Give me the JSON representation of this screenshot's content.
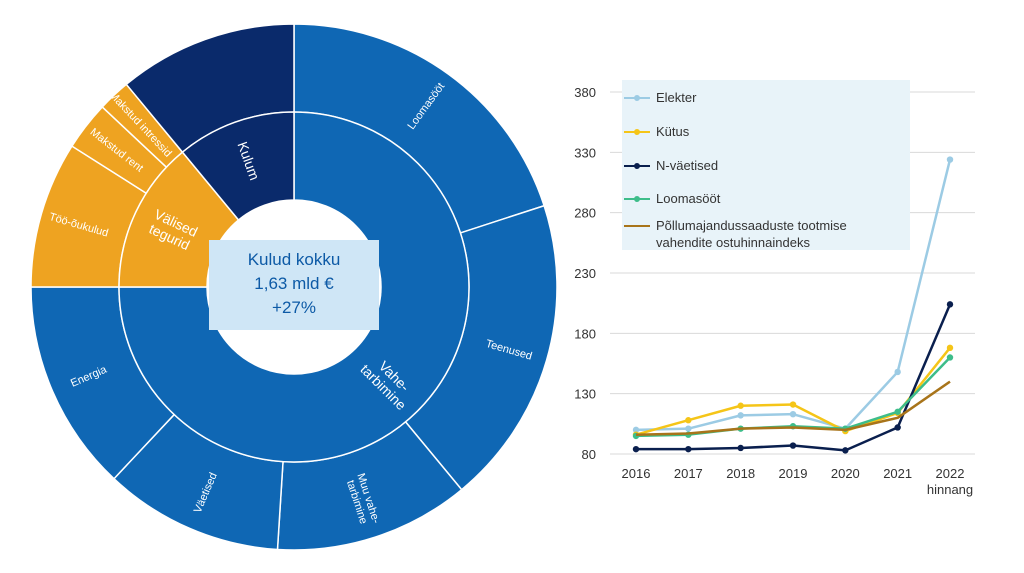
{
  "chart_data": [
    {
      "type": "sunburst",
      "center": {
        "title": "Kulud kokku",
        "value": "1,63 mld €",
        "change": "+27%"
      },
      "inner_ring": [
        {
          "label": "Vahe-\ntarbimine",
          "share": 0.75,
          "color": "#0f67b4"
        },
        {
          "label": "Välised\ntegurid",
          "share": 0.14,
          "color": "#eea321"
        },
        {
          "label": "Kulum",
          "share": 0.11,
          "color": "#0a2a6b"
        }
      ],
      "outer_ring": [
        {
          "label": "Loomasööt",
          "share": 0.2,
          "parent": "Vahe-\ntarbimine",
          "color": "#0f67b4"
        },
        {
          "label": "Teenused",
          "share": 0.19,
          "parent": "Vahe-\ntarbimine",
          "color": "#0f67b4"
        },
        {
          "label": "Muu vahe-\ntarbimine",
          "share": 0.12,
          "parent": "Vahe-\ntarbimine",
          "color": "#0f67b4"
        },
        {
          "label": "Väetised",
          "share": 0.11,
          "parent": "Vahe-\ntarbimine",
          "color": "#0f67b4"
        },
        {
          "label": "Energia",
          "share": 0.13,
          "parent": "Vahe-\ntarbimine",
          "color": "#0f67b4"
        },
        {
          "label": "Töö-õukulud",
          "share": 0.09,
          "parent": "Välised\ntegurid",
          "color": "#eea321"
        },
        {
          "label": "Makstud rent",
          "share": 0.03,
          "parent": "Välised\ntegurid",
          "color": "#eea321"
        },
        {
          "label": "Makstud intressid",
          "share": 0.02,
          "parent": "Välised\ntegurid",
          "color": "#eea321"
        },
        {
          "label": "Kulum",
          "share": 0.11,
          "parent": "Kulum",
          "color": "#0a2a6b",
          "hide_label": true
        }
      ]
    },
    {
      "type": "line",
      "categories": [
        "2016",
        "2017",
        "2018",
        "2019",
        "2020",
        "2021",
        "2022\nhinnang"
      ],
      "ylim": [
        80,
        380
      ],
      "yticks": [
        80,
        130,
        180,
        230,
        280,
        330,
        380
      ],
      "series": [
        {
          "name": "Elekter",
          "color": "#9ccbe4",
          "markers": true,
          "values": [
            100,
            101,
            112,
            113,
            101,
            148,
            324
          ]
        },
        {
          "name": "Kütus",
          "color": "#f5c518",
          "markers": true,
          "values": [
            96,
            108,
            120,
            121,
            99,
            114,
            168
          ]
        },
        {
          "name": "N-väetised",
          "color": "#0a1f4e",
          "markers": true,
          "values": [
            84,
            84,
            85,
            87,
            83,
            102,
            204
          ]
        },
        {
          "name": "Loomasööt",
          "color": "#3dbd8a",
          "markers": true,
          "values": [
            95,
            96,
            101,
            103,
            101,
            115,
            160
          ]
        },
        {
          "name": "Põllumajandussaaduste tootmise\nvahendite ostuhinnaindeks",
          "color": "#a8741a",
          "markers": false,
          "values": [
            96,
            97,
            101,
            102,
            100,
            110,
            140
          ]
        }
      ]
    }
  ]
}
